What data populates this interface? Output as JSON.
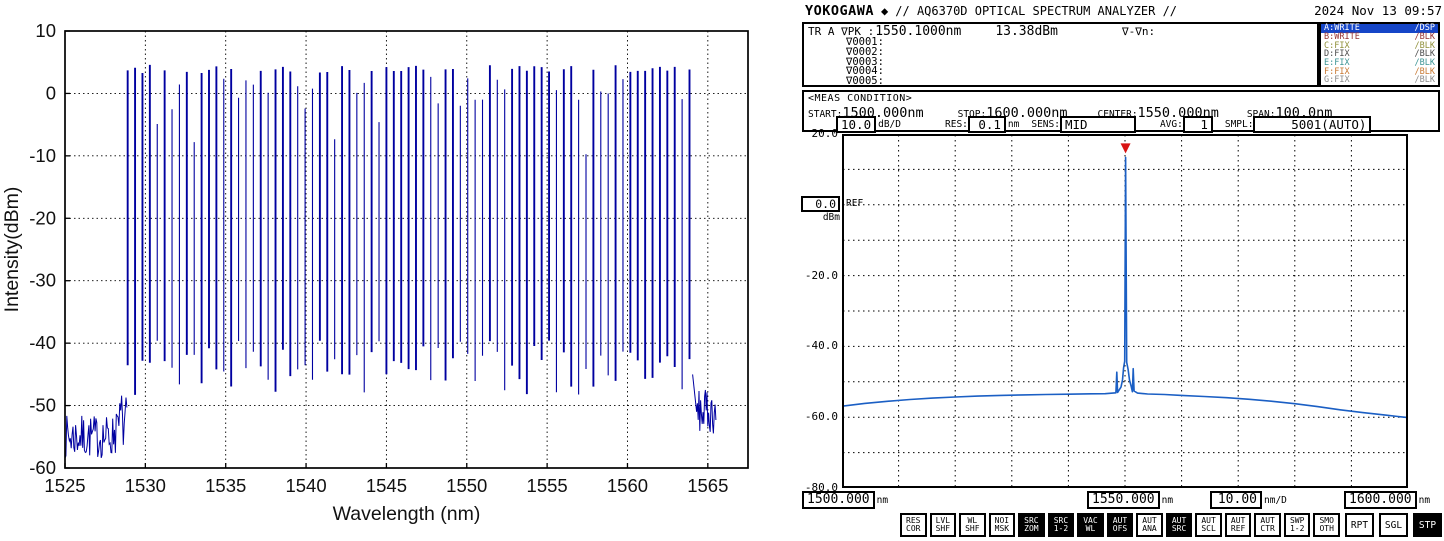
{
  "osa": {
    "header": {
      "brand": "YOKOGAWA",
      "diamond": "◆",
      "title": "// AQ6370D OPTICAL SPECTRUM ANALYZER //",
      "datetime": "2024 Nov 13 09:57"
    },
    "marker": {
      "trace_label": "TR A ∇PK :",
      "wavelength": "1550.1000nm",
      "level": "13.38dBm",
      "delta_label": "∇-∇n:",
      "marker_rows": [
        "∇0001:",
        "∇0002:",
        "∇0003:",
        "∇0004:",
        "∇0005:"
      ]
    },
    "traces": [
      {
        "name": "A:WRITE",
        "mode": "/DSP",
        "selected": true,
        "color": "#ffffff",
        "bg": "#1646c8"
      },
      {
        "name": "B:WRITE",
        "mode": "/BLK",
        "selected": false,
        "color": "#963232"
      },
      {
        "name": "C:FIX",
        "mode": "/BLK",
        "selected": false,
        "color": "#90903a"
      },
      {
        "name": "D:FIX",
        "mode": "/BLK",
        "selected": false,
        "color": "#4b4b4b"
      },
      {
        "name": "E:FIX",
        "mode": "/BLK",
        "selected": false,
        "color": "#3c9494"
      },
      {
        "name": "F:FIX",
        "mode": "/BLK",
        "selected": false,
        "color": "#c87832"
      },
      {
        "name": "G:FIX",
        "mode": "/BLK",
        "selected": false,
        "color": "#8c8c8c"
      }
    ],
    "meas": {
      "title": "<MEAS CONDITION>",
      "start_label": "START:",
      "start": "1500.000nm",
      "stop_label": "STOP:",
      "stop": "1600.000nm",
      "center_label": "CENTER:",
      "center": "1550.000nm",
      "span_label": "SPAN:",
      "span": "100.0nm"
    },
    "settings": {
      "scale": "10.0",
      "scale_unit": "dB/D",
      "res_label": "RES:",
      "res": "0.1",
      "res_unit": "nm",
      "sens_label": "SENS:",
      "sens": "MID",
      "avg_label": "AVG:",
      "avg": "1",
      "smpl_label": "SMPL:",
      "smpl": "5001(AUTO)"
    },
    "yaxis": {
      "top_label": "20.0",
      "ref_value": "0.0",
      "ref_unit": "dBm",
      "ref_text": "REF",
      "scale_labels": [
        {
          "text": "-20.0",
          "value": -20
        },
        {
          "text": "-40.0",
          "value": -40
        },
        {
          "text": "-60.0",
          "value": -60
        },
        {
          "text": "-80.0",
          "value": -80
        }
      ]
    },
    "xaxis": {
      "start": "1500.000",
      "start_unit": "nm",
      "center": "1550.000",
      "center_unit": "nm",
      "scale": "10.00",
      "scale_unit": "nm/D",
      "stop": "1600.000",
      "stop_unit": "nm"
    },
    "softkeys": [
      {
        "line1": "RES",
        "line2": "COR",
        "inverted": false
      },
      {
        "line1": "LVL",
        "line2": "SHF",
        "inverted": false
      },
      {
        "line1": "WL",
        "line2": "SHF",
        "inverted": false
      },
      {
        "line1": "NOI",
        "line2": "MSK",
        "inverted": false
      },
      {
        "line1": "SRC",
        "line2": "ZOM",
        "inverted": true
      },
      {
        "line1": "SRC",
        "line2": "1-2",
        "inverted": true
      },
      {
        "line1": "VAC",
        "line2": "WL",
        "inverted": true
      },
      {
        "line1": "AUT",
        "line2": "OFS",
        "inverted": true
      },
      {
        "line1": "AUT",
        "line2": "ANA",
        "inverted": false
      },
      {
        "line1": "AUT",
        "line2": "SRC",
        "inverted": true
      },
      {
        "line1": "AUT",
        "line2": "SCL",
        "inverted": false
      },
      {
        "line1": "AUT",
        "line2": "REF",
        "inverted": false
      },
      {
        "line1": "AUT",
        "line2": "CTR",
        "inverted": false
      },
      {
        "line1": "SWP",
        "line2": "1-2",
        "inverted": false
      },
      {
        "line1": "SMO",
        "line2": "OTH",
        "inverted": false
      }
    ],
    "action_keys": [
      {
        "label": "RPT",
        "inverted": false
      },
      {
        "label": "SGL",
        "inverted": false
      },
      {
        "label": "STP",
        "inverted": true
      }
    ]
  },
  "chart_data": [
    {
      "type": "line",
      "name": "optical-frequency-comb-spectrum",
      "title": "",
      "xlabel": "Wavelength (nm)",
      "ylabel": "Intensity(dBm)",
      "xlim": [
        1525,
        1567.5
      ],
      "ylim": [
        -60,
        10
      ],
      "xticks": [
        1525,
        1530,
        1535,
        1540,
        1545,
        1550,
        1555,
        1560,
        1565
      ],
      "yticks": [
        10,
        0,
        -10,
        -20,
        -30,
        -40,
        -50,
        -60
      ],
      "grid": true,
      "grid_style": "dashed",
      "line_color": "#0000a0",
      "comb": {
        "start_nm": 1528.9,
        "end_nm": 1564.0,
        "spacing_nm": 0.46,
        "peak_level_dbm": 4.6,
        "peak_variation_db": 6,
        "valley_level_dbm": -44,
        "valley_variation_db": 4.5
      },
      "noise_floor_left": {
        "start_nm": 1525.0,
        "end_nm": 1528.9,
        "level_dbm": -55,
        "variation_db": 3.5
      },
      "noise_floor_right": {
        "start_nm": 1564.05,
        "end_nm": 1565.5,
        "level_dbm": -51,
        "variation_db": 3.5
      },
      "seed": 7
    },
    {
      "type": "line",
      "name": "osa-screen-trace",
      "x_start_nm": 1500,
      "x_stop_nm": 1600,
      "x_center_nm": 1550,
      "x_span_nm": 100,
      "y_top_dbm": 20,
      "y_bottom_dbm": -80,
      "db_per_div": 10,
      "nm_per_div": 10,
      "grid_divisions": 10,
      "grid_style": "dashed",
      "line_color": "#1b5fc4",
      "marker_color": "#d81414",
      "peak": {
        "wavelength_nm": 1550.1,
        "level_dbm": 13.38
      },
      "points": [
        [
          1500,
          -56.9
        ],
        [
          1504,
          -56.1
        ],
        [
          1508,
          -55.5
        ],
        [
          1512,
          -55.0
        ],
        [
          1516,
          -54.6
        ],
        [
          1520,
          -54.3
        ],
        [
          1524,
          -54.05
        ],
        [
          1528,
          -53.85
        ],
        [
          1532,
          -53.7
        ],
        [
          1536,
          -53.6
        ],
        [
          1540,
          -53.5
        ],
        [
          1544,
          -53.4
        ],
        [
          1546.5,
          -53.35
        ],
        [
          1548.4,
          -53.1
        ],
        [
          1548.55,
          -47.3
        ],
        [
          1548.7,
          -53.0
        ],
        [
          1549.3,
          -51.5
        ],
        [
          1549.55,
          -49.5
        ],
        [
          1549.75,
          -46.0
        ],
        [
          1549.95,
          -44.2
        ],
        [
          1550.1,
          13.38
        ],
        [
          1550.3,
          -44.5
        ],
        [
          1550.55,
          -46.5
        ],
        [
          1550.8,
          -49.5
        ],
        [
          1551.1,
          -51.3
        ],
        [
          1551.3,
          -52.8
        ],
        [
          1551.45,
          -46.3
        ],
        [
          1551.6,
          -52.6
        ],
        [
          1552.2,
          -53.2
        ],
        [
          1554,
          -53.45
        ],
        [
          1557,
          -53.6
        ],
        [
          1560,
          -53.85
        ],
        [
          1564,
          -54.15
        ],
        [
          1568,
          -54.5
        ],
        [
          1572,
          -54.95
        ],
        [
          1576,
          -55.5
        ],
        [
          1580,
          -56.2
        ],
        [
          1584,
          -57.0
        ],
        [
          1588,
          -57.9
        ],
        [
          1592,
          -58.7
        ],
        [
          1596,
          -59.4
        ],
        [
          1600,
          -60.1
        ]
      ]
    }
  ]
}
